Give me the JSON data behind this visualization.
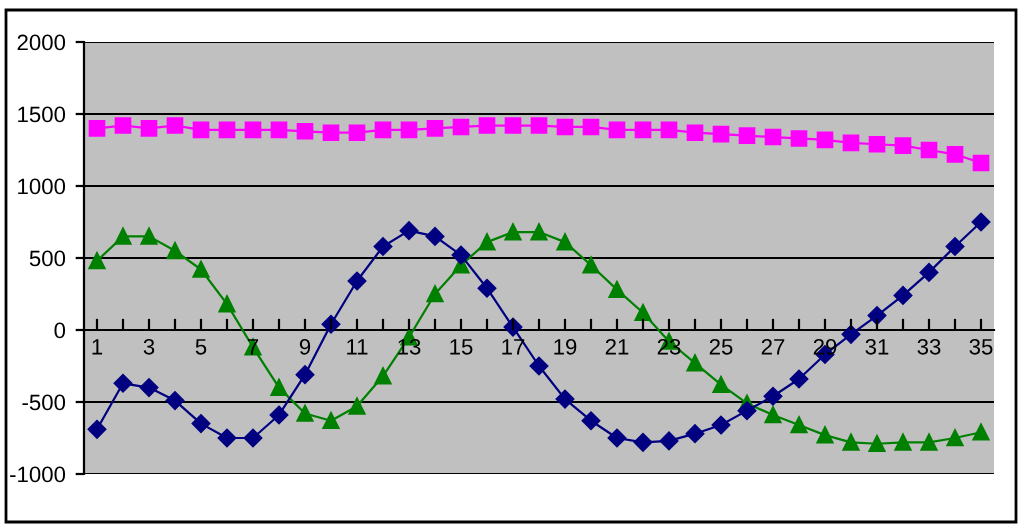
{
  "chart_data": {
    "type": "line",
    "categories": [
      "1",
      null,
      "3",
      null,
      "5",
      null,
      "7",
      null,
      "9",
      null,
      "11",
      null,
      "13",
      null,
      "15",
      null,
      "17",
      null,
      "19",
      null,
      "21",
      null,
      "23",
      null,
      "25",
      null,
      "27",
      null,
      "29",
      null,
      "31",
      null,
      "33",
      null,
      "35"
    ],
    "series": [
      {
        "color": "#000080",
        "marker": "diamond",
        "values": [
          -690,
          -370,
          -400,
          -490,
          -650,
          -750,
          -750,
          -590,
          -310,
          40,
          340,
          580,
          690,
          650,
          520,
          290,
          20,
          -250,
          -480,
          -630,
          -750,
          -780,
          -770,
          -720,
          -660,
          -560,
          -460,
          -340,
          -170,
          -30,
          100,
          240,
          400,
          580,
          750
        ]
      },
      {
        "color": "#ff00ff",
        "marker": "square",
        "values": [
          1400,
          1420,
          1400,
          1420,
          1390,
          1390,
          1390,
          1390,
          1380,
          1370,
          1370,
          1390,
          1390,
          1400,
          1410,
          1420,
          1420,
          1420,
          1410,
          1410,
          1390,
          1390,
          1390,
          1370,
          1360,
          1350,
          1340,
          1330,
          1320,
          1300,
          1290,
          1280,
          1250,
          1220,
          1160
        ]
      },
      {
        "color": "#008000",
        "marker": "triangle",
        "values": [
          480,
          650,
          650,
          550,
          420,
          180,
          -120,
          -400,
          -580,
          -630,
          -530,
          -320,
          -50,
          250,
          450,
          610,
          680,
          680,
          610,
          450,
          280,
          120,
          -80,
          -230,
          -380,
          -510,
          -590,
          -660,
          -730,
          -780,
          -790,
          -780,
          -780,
          -750,
          -710
        ]
      }
    ],
    "ylim": [
      -1000,
      2000
    ],
    "yticks": [
      -1000,
      -500,
      0,
      500,
      1000,
      1500,
      2000
    ],
    "grid": "y",
    "legend": false
  }
}
